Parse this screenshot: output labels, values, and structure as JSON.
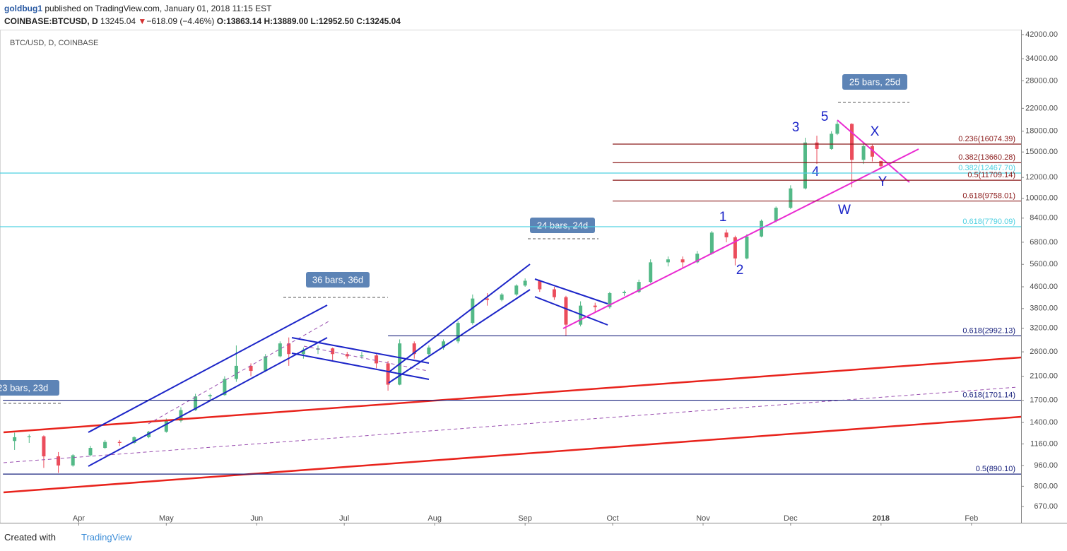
{
  "header": {
    "author": "goldbug1",
    "published": "published on TradingView.com, January 01, 2018 11:15 EST",
    "symbol": "COINBASE:BTCUSD, D",
    "last": "13245.04",
    "arrow": "▼",
    "change": "−618.09 (−4.46%)",
    "open": "O:13863.14",
    "high": "H:13889.00",
    "low": "L:12952.50",
    "close": "C:13245.04"
  },
  "footer": {
    "created": "Created with",
    "brand": "TradingView"
  },
  "chart_data": {
    "type": "candlestick",
    "title": "BTC/USD, D, COINBASE",
    "log_scale": true,
    "up_color": "#53b987",
    "down_color": "#eb4d5c",
    "xlim": [
      "2017-03-05",
      "2018-02-18"
    ],
    "xticks": [
      {
        "value": "2017-04-01",
        "label": "Apr"
      },
      {
        "value": "2017-05-01",
        "label": "May"
      },
      {
        "value": "2017-06-01",
        "label": "Jun"
      },
      {
        "value": "2017-07-01",
        "label": "Jul"
      },
      {
        "value": "2017-08-01",
        "label": "Aug"
      },
      {
        "value": "2017-09-01",
        "label": "Sep"
      },
      {
        "value": "2017-10-01",
        "label": "Oct"
      },
      {
        "value": "2017-11-01",
        "label": "Nov"
      },
      {
        "value": "2017-12-01",
        "label": "Dec"
      },
      {
        "value": "2018-01-01",
        "label": "2018"
      },
      {
        "value": "2018-02-01",
        "label": "Feb"
      }
    ],
    "ylim": [
      581,
      43850
    ],
    "yticks": [
      {
        "value": 42000,
        "label": "42000.00"
      },
      {
        "value": 34000,
        "label": "34000.00"
      },
      {
        "value": 28000,
        "label": "28000.00"
      },
      {
        "value": 22000,
        "label": "22000.00"
      },
      {
        "value": 18000,
        "label": "18000.00"
      },
      {
        "value": 15000,
        "label": "15000.00"
      },
      {
        "value": 12000,
        "label": "12000.00"
      },
      {
        "value": 10000,
        "label": "10000.00"
      },
      {
        "value": 8400,
        "label": "8400.00"
      },
      {
        "value": 6800,
        "label": "6800.00"
      },
      {
        "value": 5600,
        "label": "5600.00"
      },
      {
        "value": 4600,
        "label": "4600.00"
      },
      {
        "value": 3800,
        "label": "3800.00"
      },
      {
        "value": 3200,
        "label": "3200.00"
      },
      {
        "value": 2600,
        "label": "2600.00"
      },
      {
        "value": 2100,
        "label": "2100.00"
      },
      {
        "value": 1700,
        "label": "1700.00"
      },
      {
        "value": 1400,
        "label": "1400.00"
      },
      {
        "value": 1160,
        "label": "1160.00"
      },
      {
        "value": 960,
        "label": "960.00"
      },
      {
        "value": 800,
        "label": "800.00"
      },
      {
        "value": 670,
        "label": "670.00"
      }
    ],
    "x": [
      "2017-03-10",
      "2017-03-15",
      "2017-03-20",
      "2017-03-25",
      "2017-03-30",
      "2017-04-05",
      "2017-04-10",
      "2017-04-15",
      "2017-04-20",
      "2017-04-25",
      "2017-05-01",
      "2017-05-06",
      "2017-05-11",
      "2017-05-16",
      "2017-05-21",
      "2017-05-25",
      "2017-05-30",
      "2017-06-04",
      "2017-06-09",
      "2017-06-12",
      "2017-06-17",
      "2017-06-22",
      "2017-06-27",
      "2017-07-02",
      "2017-07-07",
      "2017-07-12",
      "2017-07-16",
      "2017-07-20",
      "2017-07-25",
      "2017-07-30",
      "2017-08-04",
      "2017-08-09",
      "2017-08-14",
      "2017-08-19",
      "2017-08-24",
      "2017-08-29",
      "2017-09-01",
      "2017-09-06",
      "2017-09-11",
      "2017-09-15",
      "2017-09-20",
      "2017-09-25",
      "2017-09-30",
      "2017-10-05",
      "2017-10-10",
      "2017-10-14",
      "2017-10-20",
      "2017-10-25",
      "2017-10-30",
      "2017-11-04",
      "2017-11-09",
      "2017-11-12",
      "2017-11-16",
      "2017-11-21",
      "2017-11-26",
      "2017-12-01",
      "2017-12-06",
      "2017-12-10",
      "2017-12-15",
      "2017-12-17",
      "2017-12-22",
      "2017-12-26",
      "2017-12-29",
      "2018-01-01"
    ],
    "open": [
      1190,
      1230,
      1240,
      1040,
      960,
      1050,
      1120,
      1180,
      1170,
      1230,
      1290,
      1420,
      1560,
      1760,
      1780,
      2050,
      2300,
      2200,
      2500,
      2800,
      2550,
      2650,
      2680,
      2550,
      2500,
      2520,
      2350,
      1950,
      2800,
      2550,
      2700,
      2850,
      3350,
      4150,
      4100,
      4300,
      4650,
      4850,
      4500,
      4200,
      3300,
      3900,
      3850,
      4350,
      4400,
      4800,
      5700,
      5850,
      5700,
      6150,
      7400,
      7100,
      5900,
      7150,
      8200,
      9200,
      10900,
      16300,
      15400,
      17600,
      19200,
      14000,
      15800,
      13863.14
    ],
    "high": [
      1280,
      1260,
      1250,
      1080,
      1060,
      1140,
      1200,
      1200,
      1240,
      1300,
      1450,
      1600,
      1800,
      1800,
      2100,
      2750,
      2350,
      2550,
      2850,
      2950,
      2700,
      2750,
      2700,
      2600,
      2600,
      2550,
      2400,
      2900,
      2850,
      2750,
      2900,
      3400,
      4300,
      4350,
      4350,
      4700,
      4950,
      4900,
      4600,
      4250,
      4050,
      4000,
      4400,
      4450,
      4900,
      5850,
      6000,
      6000,
      6300,
      7500,
      7600,
      7200,
      7300,
      8300,
      9300,
      11200,
      17000,
      17300,
      18000,
      19700,
      19300,
      16200,
      16000,
      13889
    ],
    "low": [
      1100,
      1170,
      940,
      900,
      950,
      1040,
      1110,
      1140,
      1160,
      1220,
      1280,
      1400,
      1550,
      1700,
      1770,
      2000,
      2100,
      2180,
      2480,
      2300,
      2450,
      2550,
      2400,
      2450,
      2450,
      2250,
      1850,
      1940,
      2450,
      2500,
      2650,
      2800,
      3300,
      3900,
      4050,
      4250,
      4600,
      4400,
      4100,
      3000,
      3250,
      3700,
      3800,
      4250,
      4350,
      4750,
      5500,
      5400,
      5650,
      6100,
      6800,
      5550,
      5850,
      7100,
      8100,
      9100,
      10800,
      13500,
      15300,
      17400,
      11000,
      13500,
      13800,
      12952.5
    ],
    "close": [
      1230,
      1240,
      1040,
      960,
      1050,
      1120,
      1180,
      1170,
      1230,
      1290,
      1420,
      1560,
      1760,
      1780,
      2050,
      2300,
      2200,
      2500,
      2800,
      2550,
      2650,
      2680,
      2550,
      2500,
      2520,
      2350,
      1950,
      2800,
      2550,
      2700,
      2850,
      3350,
      4150,
      4100,
      4300,
      4650,
      4850,
      4500,
      4200,
      3300,
      3900,
      3850,
      4350,
      4400,
      4800,
      5700,
      5850,
      5700,
      6150,
      7400,
      7100,
      5900,
      7150,
      8200,
      9200,
      10900,
      16300,
      15400,
      17600,
      19200,
      14000,
      15800,
      14400,
      13245.04
    ],
    "fib_levels": [
      {
        "label": "0.236(16074.39)",
        "price": 16074.39,
        "color": "#8b1a1a",
        "from": "2017-10-01"
      },
      {
        "label": "0.382(13660.28)",
        "price": 13660.28,
        "color": "#8b1a1a",
        "from": "2017-10-01"
      },
      {
        "label": "0.382(12467.70)",
        "price": 12467.7,
        "color": "#4dd0e1",
        "from": "2017-03-05"
      },
      {
        "label": "0.5(11709.14)",
        "price": 11709.14,
        "color": "#8b1a1a",
        "from": "2017-10-01"
      },
      {
        "label": "0.618(9758.01)",
        "price": 9758.01,
        "color": "#8b1a1a",
        "from": "2017-10-01"
      },
      {
        "label": "0.618(7790.09)",
        "price": 7790.09,
        "color": "#4dd0e1",
        "from": "2017-03-05"
      },
      {
        "label": "0.618(2992.13)",
        "price": 2992.13,
        "color": "#1a237e",
        "from": "2017-07-16"
      },
      {
        "label": "0.618(1701.14)",
        "price": 1701.14,
        "color": "#1a237e",
        "from": "2017-03-06"
      },
      {
        "label": "0.5(890.10)",
        "price": 890.1,
        "color": "#1a237e",
        "from": "2017-03-06"
      }
    ],
    "annotations": {
      "range_36": "36 bars, 36d",
      "range_24": "24 bars, 24d",
      "range_25": "25 bars, 25d",
      "range_23": "23 bars, 23d",
      "w1": "1",
      "w2": "2",
      "w3": "3",
      "w4": "4",
      "w5": "5",
      "wx": "X",
      "wy": "Y",
      "ww": "W"
    }
  }
}
